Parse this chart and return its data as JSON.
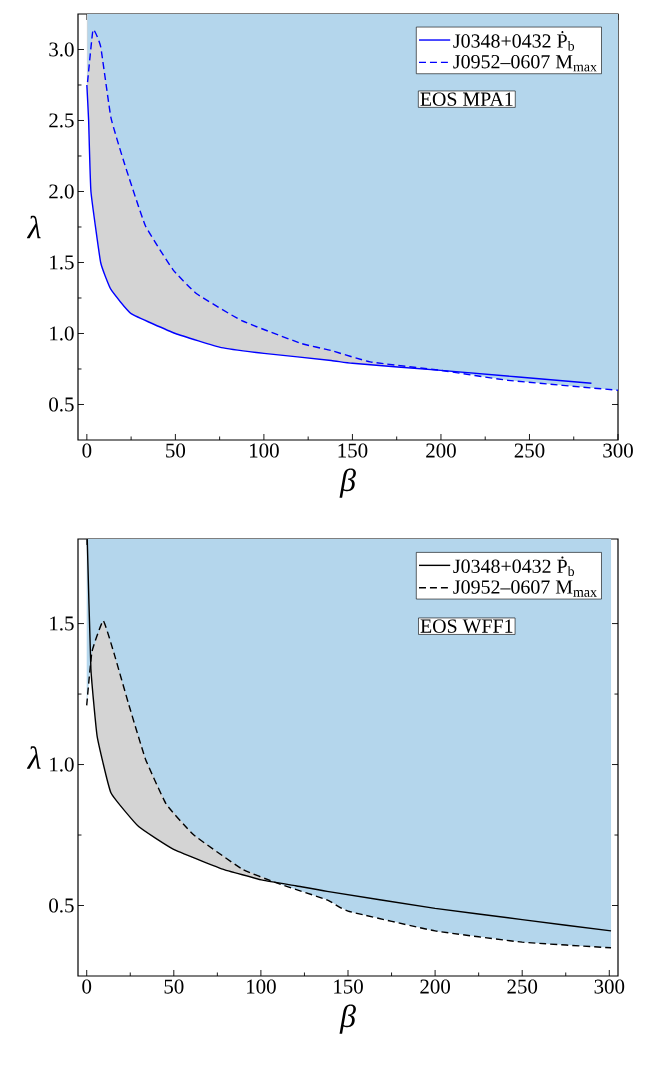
{
  "chart_data": [
    {
      "type": "line",
      "xlabel": "β",
      "ylabel": "λ",
      "xlim": [
        -5,
        300
      ],
      "ylim": [
        0.25,
        3.25
      ],
      "xticks": [
        0,
        50,
        100,
        150,
        200,
        250,
        300
      ],
      "yticks": [
        0.5,
        {
          "value": 1.0,
          "label": "1.0"
        },
        1.5,
        {
          "value": 2.0,
          "label": "2.0"
        },
        2.5,
        {
          "value": 3.0,
          "label": "3.0"
        }
      ],
      "legend": "top right",
      "annotations": [
        "EOS MPA1"
      ],
      "series": [
        {
          "name": "J0348+0432   Ṗ$_{b}$",
          "color": "#0000ff",
          "line_style": "solid",
          "x": [
            0,
            1,
            2.3,
            7.8,
            13.6,
            25,
            50,
            76,
            100,
            138,
            150,
            200,
            285
          ],
          "values": [
            2.75,
            2.5,
            2.0,
            1.5,
            1.31,
            1.14,
            1.0,
            0.9,
            0.86,
            0.81,
            0.79,
            0.74,
            0.65
          ],
          "lower": [
            2.75,
            2.5,
            2.0,
            1.5,
            1.31,
            1.14,
            1.0,
            0.9,
            0.86,
            0.81,
            0.79,
            0.74,
            0.65
          ],
          "upper": [
            3.25,
            3.25,
            3.25,
            3.25,
            3.25,
            3.25,
            3.25,
            3.25,
            3.25,
            3.25,
            3.25,
            3.25,
            3.25
          ]
        },
        {
          "name": "J0952–0607   M$_{max}$",
          "color": "#0000ff",
          "line_style": "dashed",
          "x": [
            0.4,
            3.5,
            7.8,
            13.6,
            21.4,
            33,
            48.6,
            62,
            87.5,
            121,
            138,
            160,
            200,
            238,
            300
          ],
          "values": [
            2.77,
            3.14,
            3.02,
            2.52,
            2.19,
            1.76,
            1.45,
            1.28,
            1.09,
            0.93,
            0.88,
            0.8,
            0.74,
            0.67,
            0.6
          ],
          "lower": [
            2.77,
            3.14,
            3.02,
            2.52,
            2.19,
            1.76,
            1.45,
            1.28,
            1.09,
            0.93,
            0.88,
            0.8,
            0.74,
            0.67,
            0.6
          ],
          "upper": [
            3.25,
            3.25,
            3.25,
            3.25,
            3.25,
            3.25,
            3.25,
            3.25,
            3.25,
            3.25,
            3.25,
            3.25,
            3.25,
            3.25,
            3.25
          ]
        }
      ]
    },
    {
      "type": "line",
      "xlabel": "β",
      "ylabel": "λ",
      "xlim": [
        -5,
        305
      ],
      "ylim": [
        0.25,
        1.8
      ],
      "xticks": [
        0,
        50,
        100,
        150,
        200,
        250,
        300
      ],
      "yticks": [
        0.5,
        {
          "value": 1.0,
          "label": "1.0"
        },
        1.5
      ],
      "legend": "top right",
      "annotations": [
        "EOS WFF1"
      ],
      "series": [
        {
          "name": "J0348+0432   Ṗ$_{b}$",
          "color": "#000000",
          "line_style": "solid",
          "x": [
            0.3,
            2.4,
            6,
            13.9,
            29.8,
            49.6,
            77.4,
            101,
            120,
            138,
            200,
            250,
            301
          ],
          "values": [
            1.8,
            1.34,
            1.1,
            0.9,
            0.78,
            0.7,
            0.63,
            0.59,
            0.57,
            0.55,
            0.49,
            0.45,
            0.41
          ],
          "lower": [
            1.8,
            1.34,
            1.1,
            0.9,
            0.78,
            0.7,
            0.63,
            0.59,
            0.57,
            0.55,
            0.49,
            0.45,
            0.41
          ],
          "upper": [
            1.8,
            1.8,
            1.8,
            1.8,
            1.8,
            1.8,
            1.8,
            1.8,
            1.8,
            1.8,
            1.8,
            1.8,
            1.8
          ]
        },
        {
          "name": "J0952–0607   M$_{max}$",
          "color": "#000000",
          "line_style": "dashed",
          "x": [
            0,
            3,
            9.5,
            15.9,
            23.8,
            33.7,
            45.6,
            61.5,
            89,
            109,
            138,
            150,
            200,
            250,
            301
          ],
          "values": [
            1.21,
            1.4,
            1.51,
            1.39,
            1.22,
            1.02,
            0.86,
            0.75,
            0.63,
            0.58,
            0.52,
            0.48,
            0.41,
            0.37,
            0.35
          ],
          "lower": [
            1.21,
            1.4,
            1.51,
            1.39,
            1.22,
            1.02,
            0.86,
            0.75,
            0.63,
            0.58,
            0.52,
            0.48,
            0.41,
            0.37,
            0.35
          ],
          "upper": [
            1.8,
            1.8,
            1.8,
            1.8,
            1.8,
            1.8,
            1.8,
            1.8,
            1.8,
            1.8,
            1.8,
            1.8,
            1.8,
            1.8,
            1.8
          ]
        }
      ]
    }
  ]
}
